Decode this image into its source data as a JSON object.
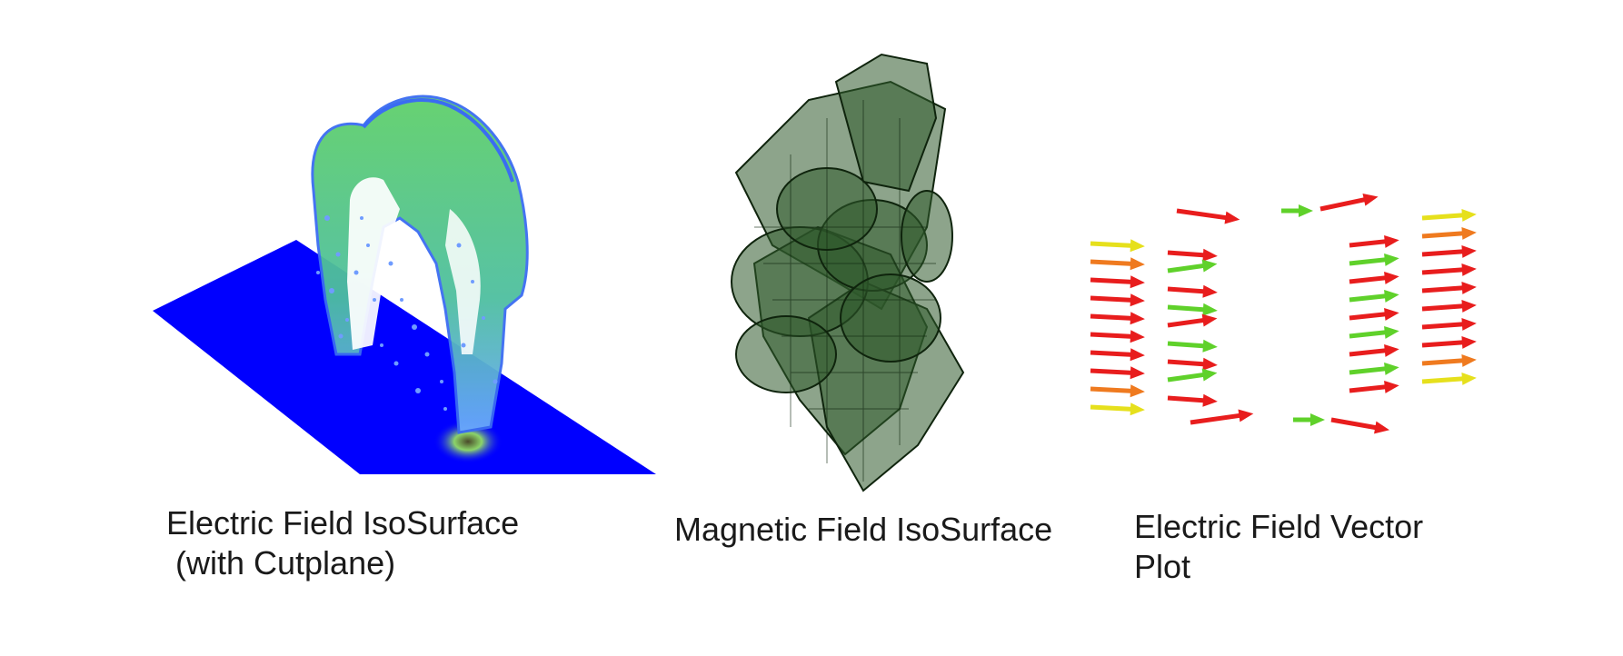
{
  "panels": [
    {
      "caption_lines": [
        "Electric Field IsoSurface",
        " (with Cutplane)"
      ],
      "colors": {
        "cutplane": "#0000ff",
        "surface": "#3ec93a",
        "edge": "#3a6cf2",
        "speckle": "#6f9cff"
      }
    },
    {
      "caption_lines": [
        "Magnetic Field IsoSurface"
      ],
      "colors": {
        "surface": "#2f5a2c",
        "edge": "#0f240d",
        "shade": "#1d3b1b"
      }
    },
    {
      "caption_lines": [
        "Electric Field Vector",
        "Plot"
      ],
      "colors": {
        "strong": "#e81d1d",
        "medium": "#ef7a1f",
        "weak": "#e6e01c",
        "faint": "#5fd12a"
      }
    }
  ]
}
